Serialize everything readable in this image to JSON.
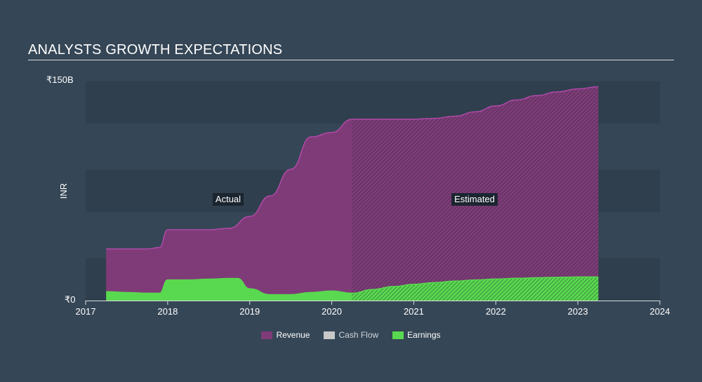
{
  "header": {
    "title": "ANALYSTS GROWTH EXPECTATIONS"
  },
  "colors": {
    "background": "#354656",
    "band": "#2f3f4d",
    "revenue": "#7f3b78",
    "revenue_line": "#b04aa8",
    "cash_flow": "#c8c8c8",
    "earnings": "#59d94f"
  },
  "chart_data": {
    "type": "area",
    "title": "ANALYSTS GROWTH EXPECTATIONS",
    "ylabel": "INR",
    "ylim": [
      0,
      150
    ],
    "xlim": [
      2017,
      2024
    ],
    "y_tick_labels": {
      "top": "₹150B",
      "bottom": "₹0"
    },
    "x_ticks": [
      2017,
      2018,
      2019,
      2020,
      2021,
      2022,
      2023,
      2024
    ],
    "split_x": 2020.25,
    "annotations": {
      "actual": "Actual",
      "estimated": "Estimated"
    },
    "series": [
      {
        "name": "Revenue",
        "color": "#b04aa8",
        "x": [
          2017.25,
          2017.5,
          2017.75,
          2017.9,
          2018.0,
          2018.25,
          2018.5,
          2018.75,
          2019.0,
          2019.25,
          2019.5,
          2019.75,
          2020.0,
          2020.25,
          2020.5,
          2020.75,
          2021.0,
          2021.25,
          2021.5,
          2021.75,
          2022.0,
          2022.25,
          2022.5,
          2022.75,
          2023.0,
          2023.25
        ],
        "values": [
          35,
          35,
          35,
          36,
          48,
          48,
          48,
          49,
          57,
          71,
          89,
          111,
          114,
          123,
          123,
          123,
          123,
          123.5,
          125,
          128,
          132,
          136,
          139,
          141.5,
          143.5,
          145
        ]
      },
      {
        "name": "Earnings",
        "color": "#59d94f",
        "x": [
          2017.25,
          2017.5,
          2017.75,
          2017.9,
          2018.0,
          2018.25,
          2018.5,
          2018.75,
          2018.85,
          2019.0,
          2019.25,
          2019.5,
          2019.75,
          2020.0,
          2020.25,
          2020.5,
          2020.75,
          2021.0,
          2021.25,
          2021.5,
          2021.75,
          2022.0,
          2022.25,
          2022.5,
          2022.75,
          2023.0,
          2023.25
        ],
        "values": [
          6,
          5.5,
          5,
          5,
          14,
          14,
          14.5,
          15,
          15,
          8,
          4,
          4,
          5.5,
          6.5,
          5,
          7.5,
          9.5,
          11,
          12.2,
          13.2,
          14,
          14.6,
          15.1,
          15.5,
          15.8,
          16,
          16
        ]
      },
      {
        "name": "Cash Flow",
        "color": "#c8c8c8",
        "x": [],
        "values": []
      }
    ]
  },
  "legend": [
    {
      "label": "Revenue",
      "color": "#7f3b78"
    },
    {
      "label": "Cash Flow",
      "color": "#c8c8c8"
    },
    {
      "label": "Earnings",
      "color": "#59d94f"
    }
  ]
}
